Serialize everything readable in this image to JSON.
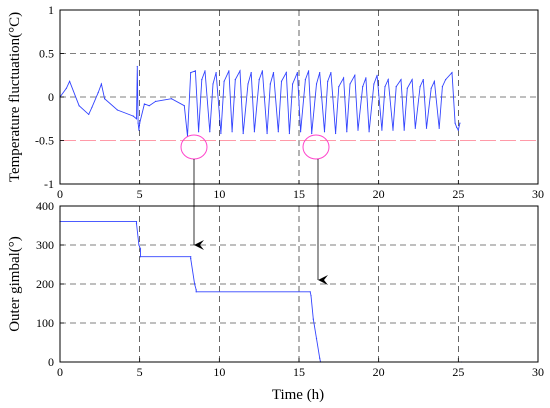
{
  "chart_data": [
    {
      "type": "line",
      "ylabel": "Temperature fluctuation(°C)",
      "xlim": [
        0,
        30
      ],
      "ylim": [
        -1,
        1
      ],
      "xticks": [
        "0",
        "5",
        "10",
        "15",
        "20",
        "25",
        "30"
      ],
      "yticks": [
        "-1",
        "-0.5",
        "0",
        "0.5",
        "1"
      ],
      "grid": true,
      "reference_line": {
        "y": -0.5,
        "color": "#ff9aa8"
      },
      "series": [
        {
          "color": "#3344ff",
          "x": [
            0,
            0.4,
            0.6,
            1.2,
            1.8,
            2.0,
            2.4,
            2.6,
            2.8,
            3.6,
            4.6,
            4.8,
            4.85,
            4.9,
            4.95,
            5.0,
            5.3,
            5.6,
            6.0,
            7.0,
            7.8,
            8.0,
            8.2,
            8.5,
            8.7,
            8.9,
            9.1,
            9.4,
            9.6,
            9.8,
            10.1,
            10.3,
            10.6,
            10.8,
            11.0,
            11.3,
            11.5,
            11.8,
            12.0,
            12.2,
            12.5,
            12.7,
            13.0,
            13.2,
            13.4,
            13.7,
            13.9,
            14.2,
            14.4,
            14.6,
            14.9,
            15.1,
            15.4,
            15.6,
            15.8,
            16.1,
            16.3,
            16.6,
            16.8,
            17.0,
            17.3,
            17.5,
            17.8,
            18.0,
            18.2,
            18.5,
            18.7,
            19.0,
            19.2,
            19.4,
            19.7,
            19.9,
            20.2,
            20.4,
            20.6,
            20.9,
            21.1,
            21.4,
            21.6,
            21.8,
            22.1,
            22.3,
            22.6,
            22.8,
            23.0,
            23.3,
            23.5,
            23.8,
            24.0,
            24.2,
            24.6,
            24.8,
            24.9,
            25.0,
            25.1
          ],
          "y": [
            0,
            0.1,
            0.18,
            -0.1,
            -0.2,
            -0.12,
            0.05,
            0.15,
            -0.02,
            -0.15,
            -0.22,
            -0.25,
            0.35,
            -0.3,
            -0.38,
            -0.3,
            -0.08,
            -0.1,
            -0.05,
            -0.02,
            -0.1,
            -0.45,
            0.28,
            0.3,
            -0.4,
            0.2,
            0.3,
            -0.4,
            0.15,
            0.28,
            -0.42,
            0.18,
            0.3,
            -0.4,
            0.2,
            0.3,
            -0.42,
            0.15,
            0.28,
            -0.4,
            0.2,
            0.3,
            -0.42,
            0.15,
            0.28,
            -0.4,
            0.18,
            0.28,
            -0.42,
            0.15,
            0.28,
            -0.4,
            0.2,
            0.3,
            -0.42,
            0.15,
            0.28,
            -0.4,
            0.18,
            0.28,
            -0.42,
            0.12,
            0.22,
            -0.4,
            0.15,
            0.25,
            -0.38,
            0.12,
            0.22,
            -0.4,
            0.15,
            0.25,
            -0.38,
            0.12,
            0.2,
            -0.38,
            0.12,
            0.2,
            -0.38,
            0.1,
            0.2,
            -0.36,
            0.12,
            0.2,
            -0.36,
            0.1,
            0.18,
            -0.36,
            0.12,
            0.2,
            0.28,
            -0.3,
            -0.35,
            -0.38,
            -0.3
          ]
        }
      ]
    },
    {
      "type": "line",
      "ylabel": "Outer gimbal(°)",
      "xlabel": "Time (h)",
      "xlim": [
        0,
        30
      ],
      "ylim": [
        0,
        400
      ],
      "xticks": [
        "0",
        "5",
        "10",
        "15",
        "20",
        "25",
        "30"
      ],
      "yticks": [
        "0",
        "100",
        "200",
        "300",
        "400"
      ],
      "grid": true,
      "series": [
        {
          "color": "#3344ff",
          "x": [
            0,
            4.8,
            4.8,
            4.95,
            5.05,
            5.05,
            8.2,
            8.2,
            8.45,
            8.55,
            8.55,
            15.7,
            15.75,
            15.9,
            16.1,
            16.3,
            16.35,
            25.2
          ],
          "y": [
            360,
            360,
            355,
            300,
            290,
            270,
            270,
            265,
            200,
            185,
            180,
            180,
            170,
            110,
            60,
            10,
            0,
            0
          ]
        }
      ]
    }
  ]
}
